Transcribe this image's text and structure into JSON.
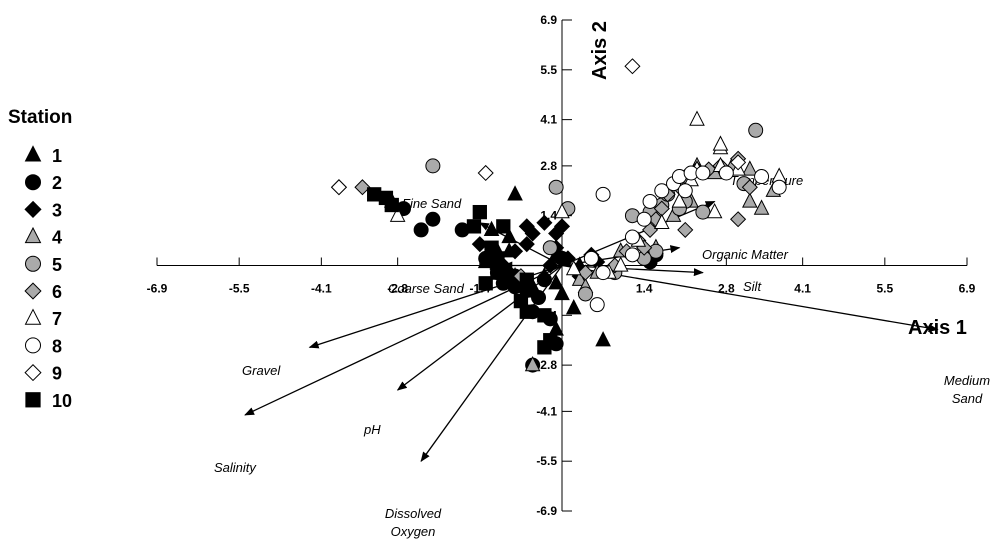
{
  "chart_data": {
    "type": "scatter",
    "xlabel": "Axis 1",
    "ylabel": "Axis 2",
    "xlim": [
      -6.9,
      6.9
    ],
    "ylim": [
      -6.9,
      6.9
    ],
    "x_ticks": [
      -6.9,
      -5.5,
      -4.1,
      -2.8,
      -1.4,
      1.4,
      2.8,
      4.1,
      5.5,
      6.9
    ],
    "y_ticks": [
      6.9,
      5.5,
      4.1,
      2.8,
      1.4,
      -1.4,
      -2.8,
      -4.1,
      -5.5,
      -6.9
    ],
    "x_tick_labels": [
      "-6.9",
      "-5.5",
      "-4.1",
      "-2.8",
      "-1.4",
      "1.4",
      "2.8",
      "4.1",
      "5.5",
      "6.9"
    ],
    "y_tick_labels": [
      "6.9",
      "5.5",
      "4.1",
      "2.8",
      "1.4",
      "-1.4",
      "-2.8",
      "-4.1",
      "-5.5",
      "-6.9"
    ],
    "legend": {
      "title": "Station",
      "placement": "left",
      "entries": [
        {
          "label": "1",
          "marker": "triangle",
          "fill": "#000000"
        },
        {
          "label": "2",
          "marker": "circle",
          "fill": "#000000"
        },
        {
          "label": "3",
          "marker": "diamond",
          "fill": "#000000"
        },
        {
          "label": "4",
          "marker": "triangle",
          "fill": "#aaaaaa"
        },
        {
          "label": "5",
          "marker": "circle",
          "fill": "#aaaaaa"
        },
        {
          "label": "6",
          "marker": "diamond",
          "fill": "#aaaaaa"
        },
        {
          "label": "7",
          "marker": "triangle",
          "fill": "#ffffff"
        },
        {
          "label": "8",
          "marker": "circle",
          "fill": "#ffffff"
        },
        {
          "label": "9",
          "marker": "diamond",
          "fill": "#ffffff"
        },
        {
          "label": "10",
          "marker": "square",
          "fill": "#000000"
        }
      ]
    },
    "vectors": [
      {
        "label": [
          "Temperature"
        ],
        "x": 2.6,
        "y": 1.8
      },
      {
        "label": [
          "Organic Matter"
        ],
        "x": 2.0,
        "y": 0.5
      },
      {
        "label": [
          "Silt"
        ],
        "x": 2.4,
        "y": -0.2
      },
      {
        "label": [
          "Medium",
          "Sand"
        ],
        "x": 6.4,
        "y": -1.8
      },
      {
        "label": [
          "Fine Sand"
        ],
        "x": -1.4,
        "y": 1.2
      },
      {
        "label": [
          "Coarse Sand"
        ],
        "x": -1.0,
        "y": 0.0
      },
      {
        "label": [
          "Gravel"
        ],
        "x": -4.3,
        "y": -2.3
      },
      {
        "label": [
          "Salinity"
        ],
        "x": -5.4,
        "y": -4.2
      },
      {
        "label": [
          "pH"
        ],
        "x": -2.8,
        "y": -3.5
      },
      {
        "label": [
          "Dissolved",
          "Oxygen"
        ],
        "x": -2.4,
        "y": -5.5
      }
    ],
    "series": [
      {
        "name": "1",
        "points": [
          [
            -2.9,
            1.8
          ],
          [
            -1.2,
            1.0
          ],
          [
            -1.1,
            0.4
          ],
          [
            -1.3,
            0.1
          ],
          [
            -0.3,
            -0.3
          ],
          [
            -0.5,
            -0.6
          ],
          [
            -0.1,
            -0.5
          ],
          [
            0,
            -0.8
          ],
          [
            0.2,
            -1.2
          ],
          [
            -0.1,
            -1.8
          ],
          [
            0.7,
            -2.1
          ],
          [
            -0.9,
            0.8
          ],
          [
            -0.9,
            0.4
          ],
          [
            0.3,
            0.0
          ],
          [
            -0.7,
            -0.5
          ],
          [
            -0.1,
            0.3
          ],
          [
            -0.8,
            -0.3
          ],
          [
            -0.8,
            2.0
          ]
        ]
      },
      {
        "name": "2",
        "points": [
          [
            -2.2,
            1.3
          ],
          [
            -2.4,
            1.0
          ],
          [
            -1.7,
            1.0
          ],
          [
            -1.3,
            0.2
          ],
          [
            -1.1,
            -0.2
          ],
          [
            -1.0,
            -0.5
          ],
          [
            -0.8,
            -0.6
          ],
          [
            -0.6,
            -0.7
          ],
          [
            -0.4,
            -0.9
          ],
          [
            -0.5,
            -1.3
          ],
          [
            -0.2,
            -1.5
          ],
          [
            -0.1,
            -2.2
          ],
          [
            -0.5,
            -2.8
          ],
          [
            -0.8,
            -0.3
          ],
          [
            -0.3,
            -0.4
          ],
          [
            0.0,
            0.2
          ],
          [
            1.6,
            0.3
          ],
          [
            1.5,
            0.1
          ],
          [
            -2.7,
            1.6
          ]
        ]
      },
      {
        "name": "3",
        "points": [
          [
            -1.4,
            0.6
          ],
          [
            -1.2,
            0.3
          ],
          [
            -1.1,
            -0.1
          ],
          [
            -0.8,
            0.4
          ],
          [
            -0.6,
            0.6
          ],
          [
            -0.5,
            0.9
          ],
          [
            -0.6,
            1.1
          ],
          [
            -0.3,
            1.2
          ],
          [
            -0.1,
            0.9
          ],
          [
            -0.1,
            0.5
          ],
          [
            0.1,
            0.2
          ],
          [
            0.5,
            0.3
          ],
          [
            0.6,
            0.1
          ],
          [
            0.3,
            -0.3
          ],
          [
            -0.9,
            -0.2
          ],
          [
            -1.0,
            0.0
          ],
          [
            -0.2,
            0.0
          ],
          [
            0,
            1.1
          ]
        ]
      },
      {
        "name": "4",
        "points": [
          [
            1.0,
            0.4
          ],
          [
            1.4,
            0.3
          ],
          [
            1.6,
            0.5
          ],
          [
            1.9,
            1.4
          ],
          [
            2.2,
            1.8
          ],
          [
            2.3,
            2.8
          ],
          [
            2.6,
            2.6
          ],
          [
            2.9,
            2.8
          ],
          [
            3.2,
            2.7
          ],
          [
            3.2,
            1.8
          ],
          [
            3.6,
            2.1
          ],
          [
            3.4,
            1.6
          ],
          [
            0.3,
            -0.4
          ],
          [
            0.4,
            -0.6
          ],
          [
            0.6,
            -0.2
          ],
          [
            -0.5,
            -2.8
          ]
        ]
      },
      {
        "name": "5",
        "points": [
          [
            -2.2,
            2.8
          ],
          [
            -0.1,
            2.2
          ],
          [
            0.1,
            1.6
          ],
          [
            -0.2,
            0.5
          ],
          [
            0.4,
            -0.8
          ],
          [
            0.9,
            -0.2
          ],
          [
            1.6,
            0.4
          ],
          [
            1.4,
            0.2
          ],
          [
            1.5,
            1.3
          ],
          [
            1.7,
            1.7
          ],
          [
            1.8,
            2.0
          ],
          [
            2.1,
            1.8
          ],
          [
            2.4,
            1.5
          ],
          [
            3.1,
            2.3
          ],
          [
            3.3,
            3.8
          ],
          [
            1.2,
            1.4
          ],
          [
            1.5,
            1.5
          ],
          [
            2.0,
            1.6
          ]
        ]
      },
      {
        "name": "6",
        "points": [
          [
            -3.4,
            2.2
          ],
          [
            -1.1,
            0.1
          ],
          [
            -0.7,
            -0.3
          ],
          [
            0.4,
            -0.2
          ],
          [
            0.9,
            0.0
          ],
          [
            1.1,
            0.4
          ],
          [
            1.3,
            0.7
          ],
          [
            1.5,
            1.0
          ],
          [
            1.6,
            1.3
          ],
          [
            1.7,
            1.6
          ],
          [
            1.8,
            2.0
          ],
          [
            2.0,
            2.2
          ],
          [
            2.1,
            2.5
          ],
          [
            2.3,
            2.7
          ],
          [
            2.5,
            2.7
          ],
          [
            2.7,
            2.8
          ],
          [
            3.0,
            3.0
          ],
          [
            3.2,
            2.2
          ],
          [
            3.0,
            1.3
          ],
          [
            2.1,
            1.0
          ],
          [
            1.4,
            0.5
          ]
        ]
      },
      {
        "name": "7",
        "points": [
          [
            -2.8,
            1.4
          ],
          [
            0,
            1.5
          ],
          [
            0.2,
            -0.1
          ],
          [
            0.8,
            -0.2
          ],
          [
            1.0,
            0.0
          ],
          [
            1.3,
            0.7
          ],
          [
            1.7,
            1.2
          ],
          [
            2.0,
            1.8
          ],
          [
            2.2,
            2.4
          ],
          [
            2.3,
            2.7
          ],
          [
            2.7,
            3.3
          ],
          [
            2.7,
            3.4
          ],
          [
            2.7,
            2.8
          ],
          [
            2.3,
            4.1
          ],
          [
            3.7,
            2.5
          ],
          [
            2.6,
            1.5
          ],
          [
            3.0,
            2.7
          ]
        ]
      },
      {
        "name": "8",
        "points": [
          [
            0.6,
            -1.1
          ],
          [
            0.7,
            -0.2
          ],
          [
            0.5,
            0.2
          ],
          [
            1.2,
            0.3
          ],
          [
            1.2,
            0.8
          ],
          [
            1.4,
            1.3
          ],
          [
            1.5,
            1.8
          ],
          [
            1.7,
            2.1
          ],
          [
            1.9,
            2.3
          ],
          [
            2.0,
            2.5
          ],
          [
            2.2,
            2.6
          ],
          [
            2.4,
            2.6
          ],
          [
            2.8,
            2.6
          ],
          [
            3.4,
            2.5
          ],
          [
            3.7,
            2.2
          ],
          [
            0.7,
            2.0
          ],
          [
            2.1,
            2.1
          ]
        ]
      },
      {
        "name": "9",
        "points": [
          [
            -3.8,
            2.2
          ],
          [
            -1.3,
            2.6
          ],
          [
            1.2,
            5.6
          ],
          [
            3.0,
            2.9
          ],
          [
            -3.8,
            2.2
          ]
        ]
      },
      {
        "name": "10",
        "points": [
          [
            -3.2,
            2.0
          ],
          [
            -3.0,
            1.9
          ],
          [
            -2.9,
            1.7
          ],
          [
            -1.4,
            1.5
          ],
          [
            -1.5,
            1.1
          ],
          [
            -1.0,
            1.1
          ],
          [
            -1.2,
            0.5
          ],
          [
            -1.1,
            0.2
          ],
          [
            -1.1,
            -0.2
          ],
          [
            -1.3,
            -0.5
          ],
          [
            -0.6,
            -0.4
          ],
          [
            -0.6,
            -0.7
          ],
          [
            -0.7,
            -1.0
          ],
          [
            -0.6,
            -1.3
          ],
          [
            -0.3,
            -1.4
          ],
          [
            -0.2,
            -2.1
          ],
          [
            -0.3,
            -2.3
          ],
          [
            -1.2,
            0.2
          ]
        ]
      }
    ]
  }
}
